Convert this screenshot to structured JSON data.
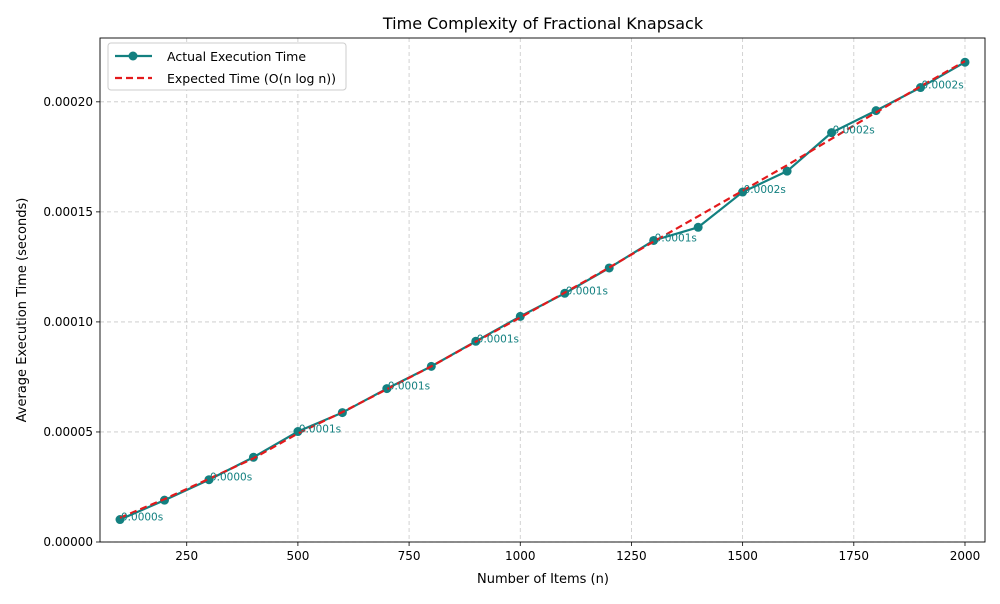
{
  "chart_data": {
    "type": "line",
    "title": "Time Complexity of Fractional Knapsack",
    "xlabel": "Number of Items (n)",
    "ylabel": "Average Execution Time (seconds)",
    "xlim": [
      55,
      2045
    ],
    "ylim": [
      0.0,
      0.000229
    ],
    "xticks": [
      250,
      500,
      750,
      1000,
      1250,
      1500,
      1750,
      2000
    ],
    "xtick_labels": [
      "250",
      "500",
      "750",
      "1000",
      "1250",
      "1500",
      "1750",
      "2000"
    ],
    "yticks": [
      0.0,
      5e-05,
      0.0001,
      0.00015,
      0.0002
    ],
    "ytick_labels": [
      "0.00000",
      "0.00005",
      "0.00010",
      "0.00015",
      "0.00020"
    ],
    "grid": true,
    "legend_position": "top-left",
    "x": [
      100,
      200,
      300,
      400,
      500,
      600,
      700,
      800,
      900,
      1000,
      1100,
      1200,
      1300,
      1400,
      1500,
      1600,
      1700,
      1800,
      1900,
      2000
    ],
    "series": [
      {
        "name": "Actual Execution Time",
        "style": "solid",
        "marker": "circle",
        "color": "#138080",
        "values": [
          1.02e-05,
          1.9e-05,
          2.83e-05,
          3.85e-05,
          5.02e-05,
          5.88e-05,
          6.97e-05,
          7.98e-05,
          9.12e-05,
          0.0001025,
          0.000113,
          0.0001245,
          0.000137,
          0.000143,
          0.000159,
          0.0001685,
          0.000186,
          0.000196,
          0.0002065,
          0.000218
        ]
      },
      {
        "name": "Expected Time (O(n log n))",
        "style": "dashed",
        "color": "#e31a1c",
        "values": [
          1.1e-05,
          1.95e-05,
          2.87e-05,
          3.8e-05,
          4.93e-05,
          5.9e-05,
          6.94e-05,
          7.98e-05,
          9.1e-05,
          0.000102,
          0.0001133,
          0.0001247,
          0.0001365,
          0.000148,
          0.0001596,
          0.0001712,
          0.0001832,
          0.0001952,
          0.000207,
          0.0002185
        ]
      }
    ],
    "annotations": [
      {
        "x": 100,
        "y": 1.02e-05,
        "text": "0.0000s"
      },
      {
        "x": 300,
        "y": 2.83e-05,
        "text": "0.0000s"
      },
      {
        "x": 500,
        "y": 5.02e-05,
        "text": "0.0001s"
      },
      {
        "x": 700,
        "y": 6.97e-05,
        "text": "0.0001s"
      },
      {
        "x": 900,
        "y": 9.12e-05,
        "text": "0.0001s"
      },
      {
        "x": 1100,
        "y": 0.000113,
        "text": "0.0001s"
      },
      {
        "x": 1300,
        "y": 0.000137,
        "text": "0.0001s"
      },
      {
        "x": 1500,
        "y": 0.000159,
        "text": "0.0002s"
      },
      {
        "x": 1700,
        "y": 0.000186,
        "text": "0.0002s"
      },
      {
        "x": 1900,
        "y": 0.0002065,
        "text": "0.0002s"
      }
    ]
  }
}
